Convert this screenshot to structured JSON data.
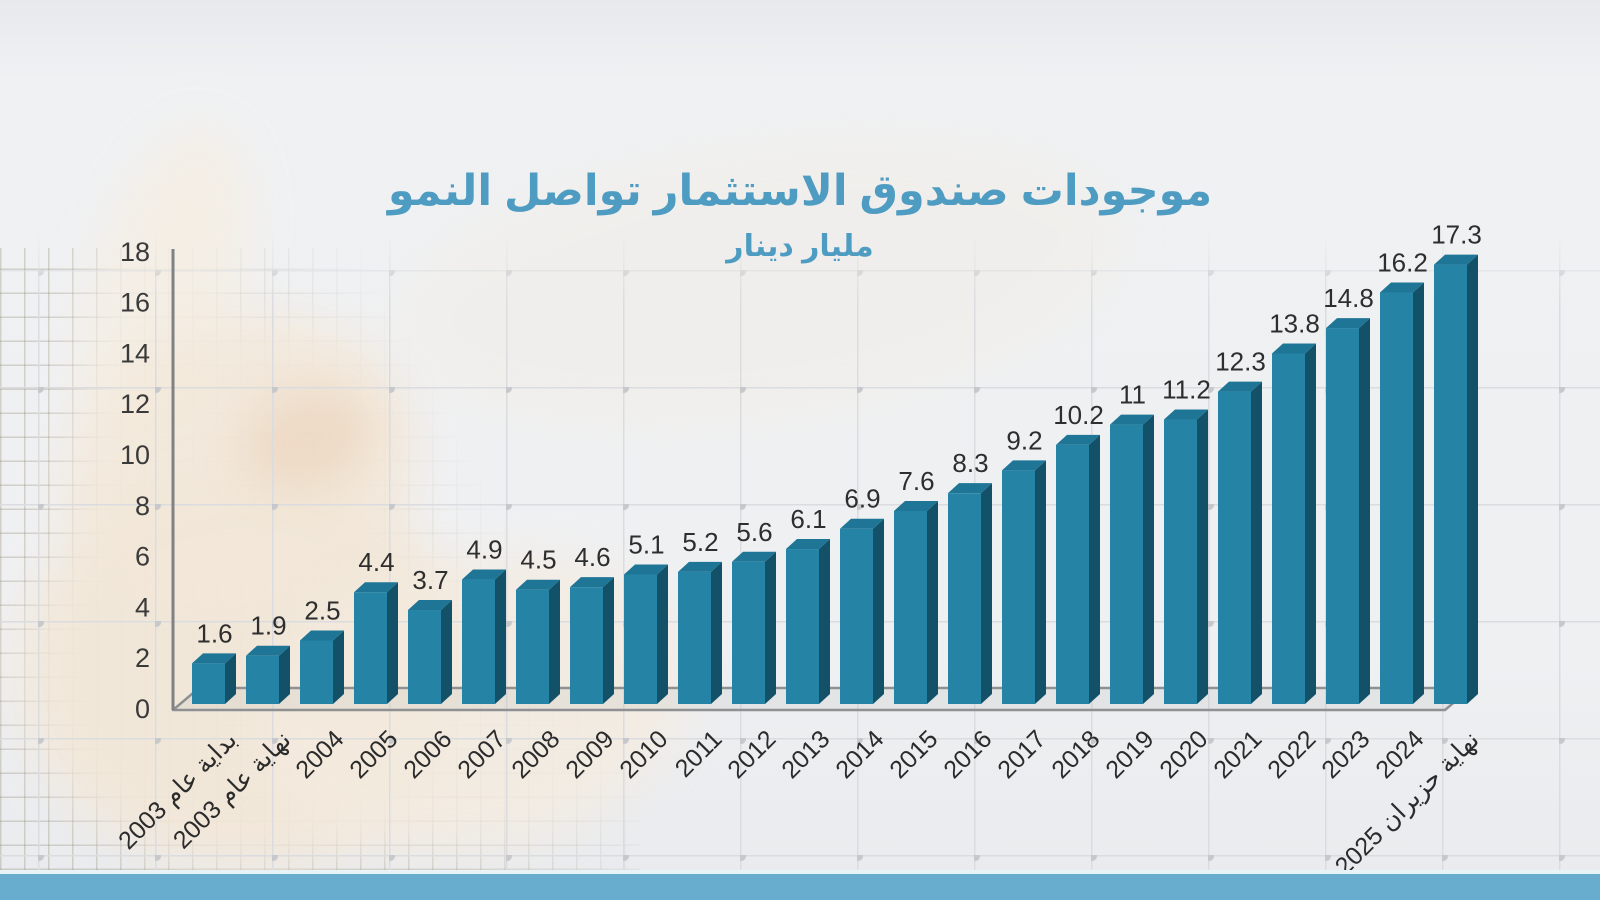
{
  "title": "موجودات صندوق الاستثمار تواصل النمو",
  "subtitle": "مليار دينار",
  "chart_data": {
    "type": "bar",
    "title": "موجودات صندوق الاستثمار تواصل النمو",
    "unit_subtitle": "مليار دينار",
    "categories": [
      "بداية عام 2003",
      "نهاية عام 2003",
      "2004",
      "2005",
      "2006",
      "2007",
      "2008",
      "2009",
      "2010",
      "2011",
      "2012",
      "2013",
      "2014",
      "2015",
      "2016",
      "2017",
      "2018",
      "2019",
      "2020",
      "2021",
      "2022",
      "2023",
      "2024",
      "نهاية حزيران 2025"
    ],
    "values": [
      1.6,
      1.9,
      2.5,
      4.4,
      3.7,
      4.9,
      4.5,
      4.6,
      5.1,
      5.2,
      5.6,
      6.1,
      6.9,
      7.6,
      8.3,
      9.2,
      10.2,
      11,
      11.2,
      12.3,
      13.8,
      14.8,
      16.2,
      17.3
    ],
    "ylim": [
      0,
      18
    ],
    "ytick_step": 2,
    "legend": "none",
    "bar_style": "3d-box",
    "data_labels": "above-bars"
  },
  "colors": {
    "title_text": "#4f9cc3",
    "bar_front": "#2583a5",
    "bar_top": "#1f7595",
    "bar_side": "#135168",
    "value_label": "#2e2e2e",
    "axis_label": "#3a3a3a",
    "axis_line": "#7f8183",
    "floor_edge": "#8e9092",
    "bottom_strip": "#68acce"
  }
}
